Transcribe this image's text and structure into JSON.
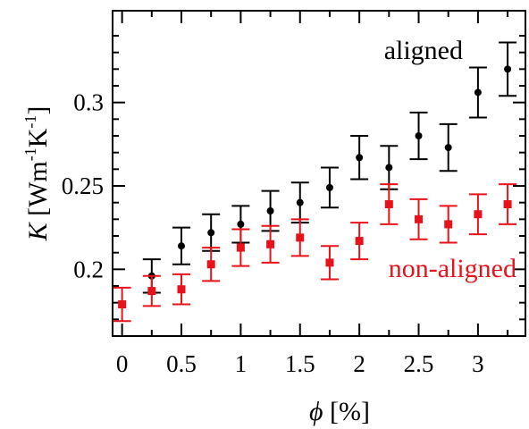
{
  "chart_data": {
    "type": "scatter",
    "xlabel_symbol": "ϕ",
    "xlabel_unit": " [%]",
    "ylabel_symbol": "K",
    "ylabel_unit": " [Wm",
    "ylabel_exp1": "-1",
    "ylabel_mid": "K",
    "ylabel_exp2": "-1",
    "ylabel_close": "]",
    "xlim": [
      -0.08,
      3.4
    ],
    "ylim": [
      0.16,
      0.355
    ],
    "xticks": [
      0,
      0.5,
      1,
      1.5,
      2,
      2.5,
      3
    ],
    "xtick_labels": [
      "0",
      "0.5",
      "1",
      "1.5",
      "2",
      "2.5",
      "3"
    ],
    "yticks": [
      0.2,
      0.25,
      0.3
    ],
    "ytick_labels": [
      "0.2",
      "0.25",
      "0.3"
    ],
    "grid": false,
    "series": [
      {
        "name": "aligned",
        "color": "#000000",
        "marker": "circle",
        "x": [
          0.25,
          0.5,
          0.75,
          1.0,
          1.25,
          1.5,
          1.75,
          2.0,
          2.25,
          2.5,
          2.75,
          3.0,
          3.25
        ],
        "y": [
          0.196,
          0.214,
          0.222,
          0.227,
          0.235,
          0.24,
          0.249,
          0.267,
          0.261,
          0.28,
          0.273,
          0.306,
          0.32
        ],
        "err": [
          0.01,
          0.011,
          0.011,
          0.011,
          0.012,
          0.012,
          0.012,
          0.013,
          0.013,
          0.014,
          0.014,
          0.015,
          0.016
        ]
      },
      {
        "name": "non-aligned",
        "color": "#e8131a",
        "marker": "square",
        "x": [
          0.0,
          0.25,
          0.5,
          0.75,
          1.0,
          1.25,
          1.5,
          1.75,
          2.0,
          2.25,
          2.5,
          2.75,
          3.0,
          3.25
        ],
        "y": [
          0.179,
          0.187,
          0.188,
          0.203,
          0.213,
          0.215,
          0.219,
          0.204,
          0.217,
          0.239,
          0.23,
          0.227,
          0.233,
          0.239
        ],
        "err": [
          0.01,
          0.009,
          0.009,
          0.01,
          0.011,
          0.011,
          0.011,
          0.01,
          0.011,
          0.012,
          0.012,
          0.011,
          0.012,
          0.012
        ]
      }
    ]
  }
}
